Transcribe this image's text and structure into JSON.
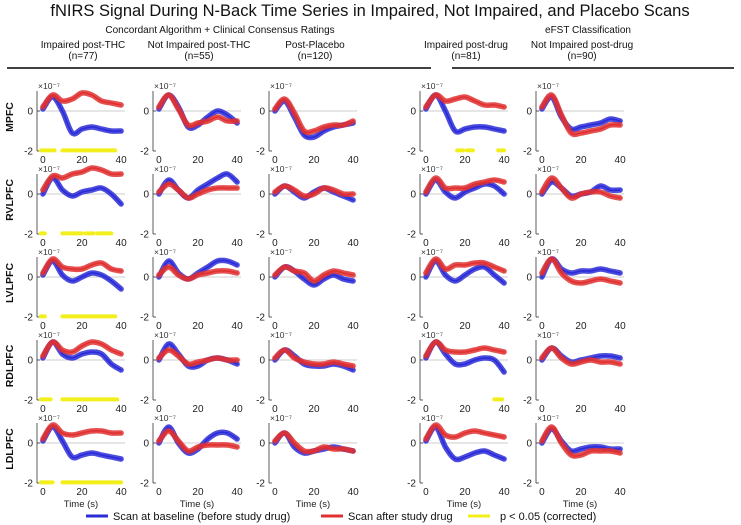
{
  "title": "fNIRS Signal During N-Back Time Series in Impaired, Not Impaired, and Placebo Scans",
  "groups": [
    {
      "label": "Concordant Algorithm + Clinical Consensus Ratings"
    },
    {
      "label": "eFST Classification"
    }
  ],
  "xlabel": "Time (s)",
  "y_exponent": "×10⁻⁷",
  "legend": [
    {
      "label": "Scan at baseline (before study drug)",
      "color": "#2b2bd8"
    },
    {
      "label": "Scan after study drug",
      "color": "#e03030"
    },
    {
      "label": "p < 0.05 (corrected)",
      "color": "#f2ef1a"
    }
  ],
  "chart_data": {
    "type": "line",
    "title": "fNIRS Signal During N-Back Time Series in Impaired, Not Impaired, and Placebo Scans",
    "xlabel": "Time (s)",
    "ylabel_unit": "x10^-7",
    "xlim": [
      -3,
      42
    ],
    "ylim": [
      -2,
      1
    ],
    "xticks": [
      0,
      20,
      40
    ],
    "yticks": [
      -2,
      0
    ],
    "columns": [
      {
        "name": "Impaired post-THC",
        "n": "(n=77)",
        "group": 0
      },
      {
        "name": "Not Impaired post-THC",
        "n": "(n=55)",
        "group": 0
      },
      {
        "name": "Post-Placebo",
        "n": "(n=120)",
        "group": 0
      },
      {
        "name": "Impaired  post-drug",
        "n": "(n=81)",
        "group": 1
      },
      {
        "name": "Not Impaired post-drug",
        "n": "(n=90)",
        "group": 1
      }
    ],
    "rows": [
      "MPFC",
      "RVLPFC",
      "LVLPFC",
      "RDLPFC",
      "LDLPFC"
    ],
    "x": [
      0,
      5,
      10,
      15,
      20,
      25,
      30,
      35,
      40
    ],
    "panels": [
      [
        {
          "baseline": [
            0.1,
            0.7,
            0.0,
            -1.1,
            -0.9,
            -0.8,
            -0.9,
            -1.0,
            -1.0
          ],
          "after": [
            0.2,
            0.8,
            0.5,
            0.6,
            0.9,
            0.8,
            0.5,
            0.4,
            0.3
          ],
          "sig": [
            [
              -1,
              6
            ],
            [
              10,
              37
            ]
          ]
        },
        {
          "baseline": [
            0.1,
            0.8,
            0.2,
            -0.8,
            -0.7,
            -0.3,
            0.0,
            -0.2,
            -0.6
          ],
          "after": [
            0.2,
            0.8,
            0.1,
            -0.7,
            -0.6,
            -0.5,
            -0.3,
            -0.5,
            -0.5
          ],
          "sig": []
        },
        {
          "baseline": [
            0.0,
            0.5,
            -0.3,
            -1.2,
            -1.3,
            -1.0,
            -0.8,
            -0.7,
            -0.6
          ],
          "after": [
            0.1,
            0.6,
            -0.1,
            -1.0,
            -1.0,
            -0.8,
            -0.7,
            -0.7,
            -0.5
          ],
          "sig": []
        },
        {
          "baseline": [
            0.1,
            0.8,
            0.0,
            -1.0,
            -0.9,
            -0.8,
            -0.8,
            -0.9,
            -1.0
          ],
          "after": [
            0.2,
            0.8,
            0.5,
            0.6,
            0.7,
            0.5,
            0.3,
            0.3,
            0.2
          ],
          "sig": [
            [
              16,
              19
            ],
            [
              21,
              24
            ],
            [
              37,
              40
            ]
          ]
        },
        {
          "baseline": [
            0.1,
            0.7,
            -0.3,
            -0.9,
            -0.8,
            -0.7,
            -0.6,
            -0.4,
            -0.5
          ],
          "after": [
            0.2,
            0.8,
            -0.2,
            -1.1,
            -1.1,
            -1.0,
            -0.9,
            -0.7,
            -0.7
          ],
          "sig": []
        }
      ],
      [
        {
          "baseline": [
            0.0,
            0.8,
            0.2,
            -0.1,
            0.1,
            0.2,
            0.3,
            0.0,
            -0.5
          ],
          "after": [
            0.2,
            0.9,
            0.8,
            1.0,
            1.1,
            1.3,
            1.2,
            1.0,
            1.0
          ],
          "sig": [
            [
              -1,
              1
            ],
            [
              10,
              20
            ],
            [
              22,
              26
            ],
            [
              28,
              35
            ]
          ]
        },
        {
          "baseline": [
            0.0,
            0.7,
            0.2,
            -0.2,
            0.2,
            0.5,
            0.8,
            1.0,
            0.6
          ],
          "after": [
            0.1,
            0.5,
            0.2,
            -0.2,
            0.0,
            0.2,
            0.3,
            0.3,
            0.3
          ],
          "sig": []
        },
        {
          "baseline": [
            0.0,
            0.4,
            0.1,
            -0.2,
            0.1,
            0.3,
            0.1,
            -0.1,
            -0.3
          ],
          "after": [
            0.1,
            0.4,
            0.2,
            -0.1,
            0.0,
            0.3,
            0.2,
            0.0,
            0.0
          ],
          "sig": []
        },
        {
          "baseline": [
            0.0,
            0.7,
            0.1,
            -0.2,
            0.1,
            0.3,
            0.5,
            0.4,
            0.0
          ],
          "after": [
            0.1,
            0.8,
            0.3,
            0.3,
            0.3,
            0.5,
            0.6,
            0.7,
            0.6
          ],
          "sig": []
        },
        {
          "baseline": [
            0.0,
            0.6,
            0.3,
            -0.1,
            0.0,
            0.1,
            0.4,
            0.2,
            0.2
          ],
          "after": [
            0.1,
            0.8,
            0.3,
            -0.2,
            0.0,
            0.1,
            0.1,
            -0.1,
            -0.2
          ],
          "sig": []
        }
      ],
      [
        {
          "baseline": [
            0.1,
            0.8,
            0.1,
            -0.2,
            0.0,
            0.2,
            0.1,
            -0.2,
            -0.6
          ],
          "after": [
            0.2,
            0.9,
            0.5,
            0.4,
            0.4,
            0.6,
            0.7,
            0.4,
            0.3
          ],
          "sig": [
            [
              -1,
              1
            ],
            [
              10,
              37
            ]
          ]
        },
        {
          "baseline": [
            0.0,
            0.8,
            0.2,
            -0.1,
            0.2,
            0.5,
            0.8,
            0.8,
            0.6
          ],
          "after": [
            0.1,
            0.5,
            0.1,
            -0.1,
            0.1,
            0.2,
            0.3,
            0.3,
            0.2
          ],
          "sig": []
        },
        {
          "baseline": [
            0.0,
            0.5,
            0.3,
            -0.1,
            -0.4,
            -0.1,
            0.1,
            -0.1,
            -0.2
          ],
          "after": [
            0.1,
            0.5,
            0.3,
            0.2,
            -0.2,
            0.1,
            0.3,
            0.2,
            0.1
          ],
          "sig": []
        },
        {
          "baseline": [
            0.0,
            0.8,
            0.1,
            -0.2,
            0.1,
            0.4,
            0.5,
            0.1,
            -0.3
          ],
          "after": [
            0.2,
            0.9,
            0.4,
            0.6,
            0.6,
            0.7,
            0.7,
            0.5,
            0.3
          ],
          "sig": []
        },
        {
          "baseline": [
            0.0,
            0.9,
            0.4,
            0.2,
            0.3,
            0.3,
            0.4,
            0.3,
            0.2
          ],
          "after": [
            0.2,
            0.9,
            0.2,
            -0.2,
            -0.3,
            -0.2,
            -0.1,
            -0.2,
            -0.3
          ],
          "sig": []
        }
      ],
      [
        {
          "baseline": [
            0.1,
            0.9,
            0.3,
            0.1,
            0.3,
            0.4,
            0.3,
            -0.2,
            -0.5
          ],
          "after": [
            0.2,
            0.9,
            0.5,
            0.4,
            0.7,
            0.9,
            0.8,
            0.5,
            0.3
          ],
          "sig": [
            [
              -1,
              4
            ],
            [
              10,
              38
            ]
          ]
        },
        {
          "baseline": [
            0.0,
            0.8,
            0.3,
            -0.3,
            -0.3,
            0.0,
            0.1,
            0.0,
            -0.2
          ],
          "after": [
            0.1,
            0.5,
            0.2,
            -0.2,
            -0.1,
            0.0,
            0.1,
            0.0,
            0.0
          ],
          "sig": []
        },
        {
          "baseline": [
            0.0,
            0.5,
            0.2,
            -0.2,
            -0.3,
            -0.3,
            -0.2,
            -0.3,
            -0.5
          ],
          "after": [
            0.1,
            0.5,
            0.1,
            -0.1,
            -0.2,
            -0.2,
            -0.1,
            -0.2,
            -0.3
          ],
          "sig": []
        },
        {
          "baseline": [
            0.1,
            0.9,
            0.3,
            -0.2,
            -0.2,
            0.0,
            0.1,
            0.0,
            -0.6
          ],
          "after": [
            0.2,
            0.9,
            0.5,
            0.4,
            0.4,
            0.5,
            0.6,
            0.5,
            0.4
          ],
          "sig": [
            [
              35,
              39
            ]
          ]
        },
        {
          "baseline": [
            0.0,
            0.6,
            0.2,
            -0.1,
            0.0,
            0.1,
            0.2,
            0.2,
            0.1
          ],
          "after": [
            0.1,
            0.6,
            0.1,
            -0.2,
            -0.1,
            0.0,
            -0.1,
            -0.1,
            -0.2
          ],
          "sig": []
        }
      ],
      [
        {
          "baseline": [
            0.1,
            0.8,
            0.1,
            -0.7,
            -0.6,
            -0.5,
            -0.6,
            -0.7,
            -0.8
          ],
          "after": [
            0.2,
            0.9,
            0.5,
            0.4,
            0.5,
            0.6,
            0.6,
            0.5,
            0.5
          ],
          "sig": [
            [
              -1,
              5
            ],
            [
              10,
              40
            ]
          ]
        },
        {
          "baseline": [
            0.0,
            0.8,
            0.0,
            -0.5,
            -0.3,
            0.2,
            0.5,
            0.5,
            0.2
          ],
          "after": [
            0.1,
            0.6,
            0.1,
            -0.4,
            -0.2,
            -0.1,
            -0.1,
            -0.1,
            -0.2
          ],
          "sig": []
        },
        {
          "baseline": [
            0.0,
            0.5,
            -0.2,
            -0.5,
            -0.4,
            -0.3,
            -0.2,
            -0.3,
            -0.4
          ],
          "after": [
            0.1,
            0.5,
            0.0,
            -0.4,
            -0.4,
            -0.2,
            -0.3,
            -0.3,
            -0.4
          ],
          "sig": []
        },
        {
          "baseline": [
            0.1,
            0.8,
            -0.2,
            -0.8,
            -0.7,
            -0.5,
            -0.4,
            -0.6,
            -0.8
          ],
          "after": [
            0.2,
            0.9,
            0.4,
            0.3,
            0.5,
            0.6,
            0.5,
            0.4,
            0.3
          ],
          "sig": []
        },
        {
          "baseline": [
            0.0,
            0.7,
            0.1,
            -0.4,
            -0.3,
            -0.2,
            -0.2,
            -0.3,
            -0.3
          ],
          "after": [
            0.1,
            0.8,
            0.0,
            -0.6,
            -0.6,
            -0.4,
            -0.4,
            -0.4,
            -0.5
          ],
          "sig": []
        }
      ]
    ]
  }
}
